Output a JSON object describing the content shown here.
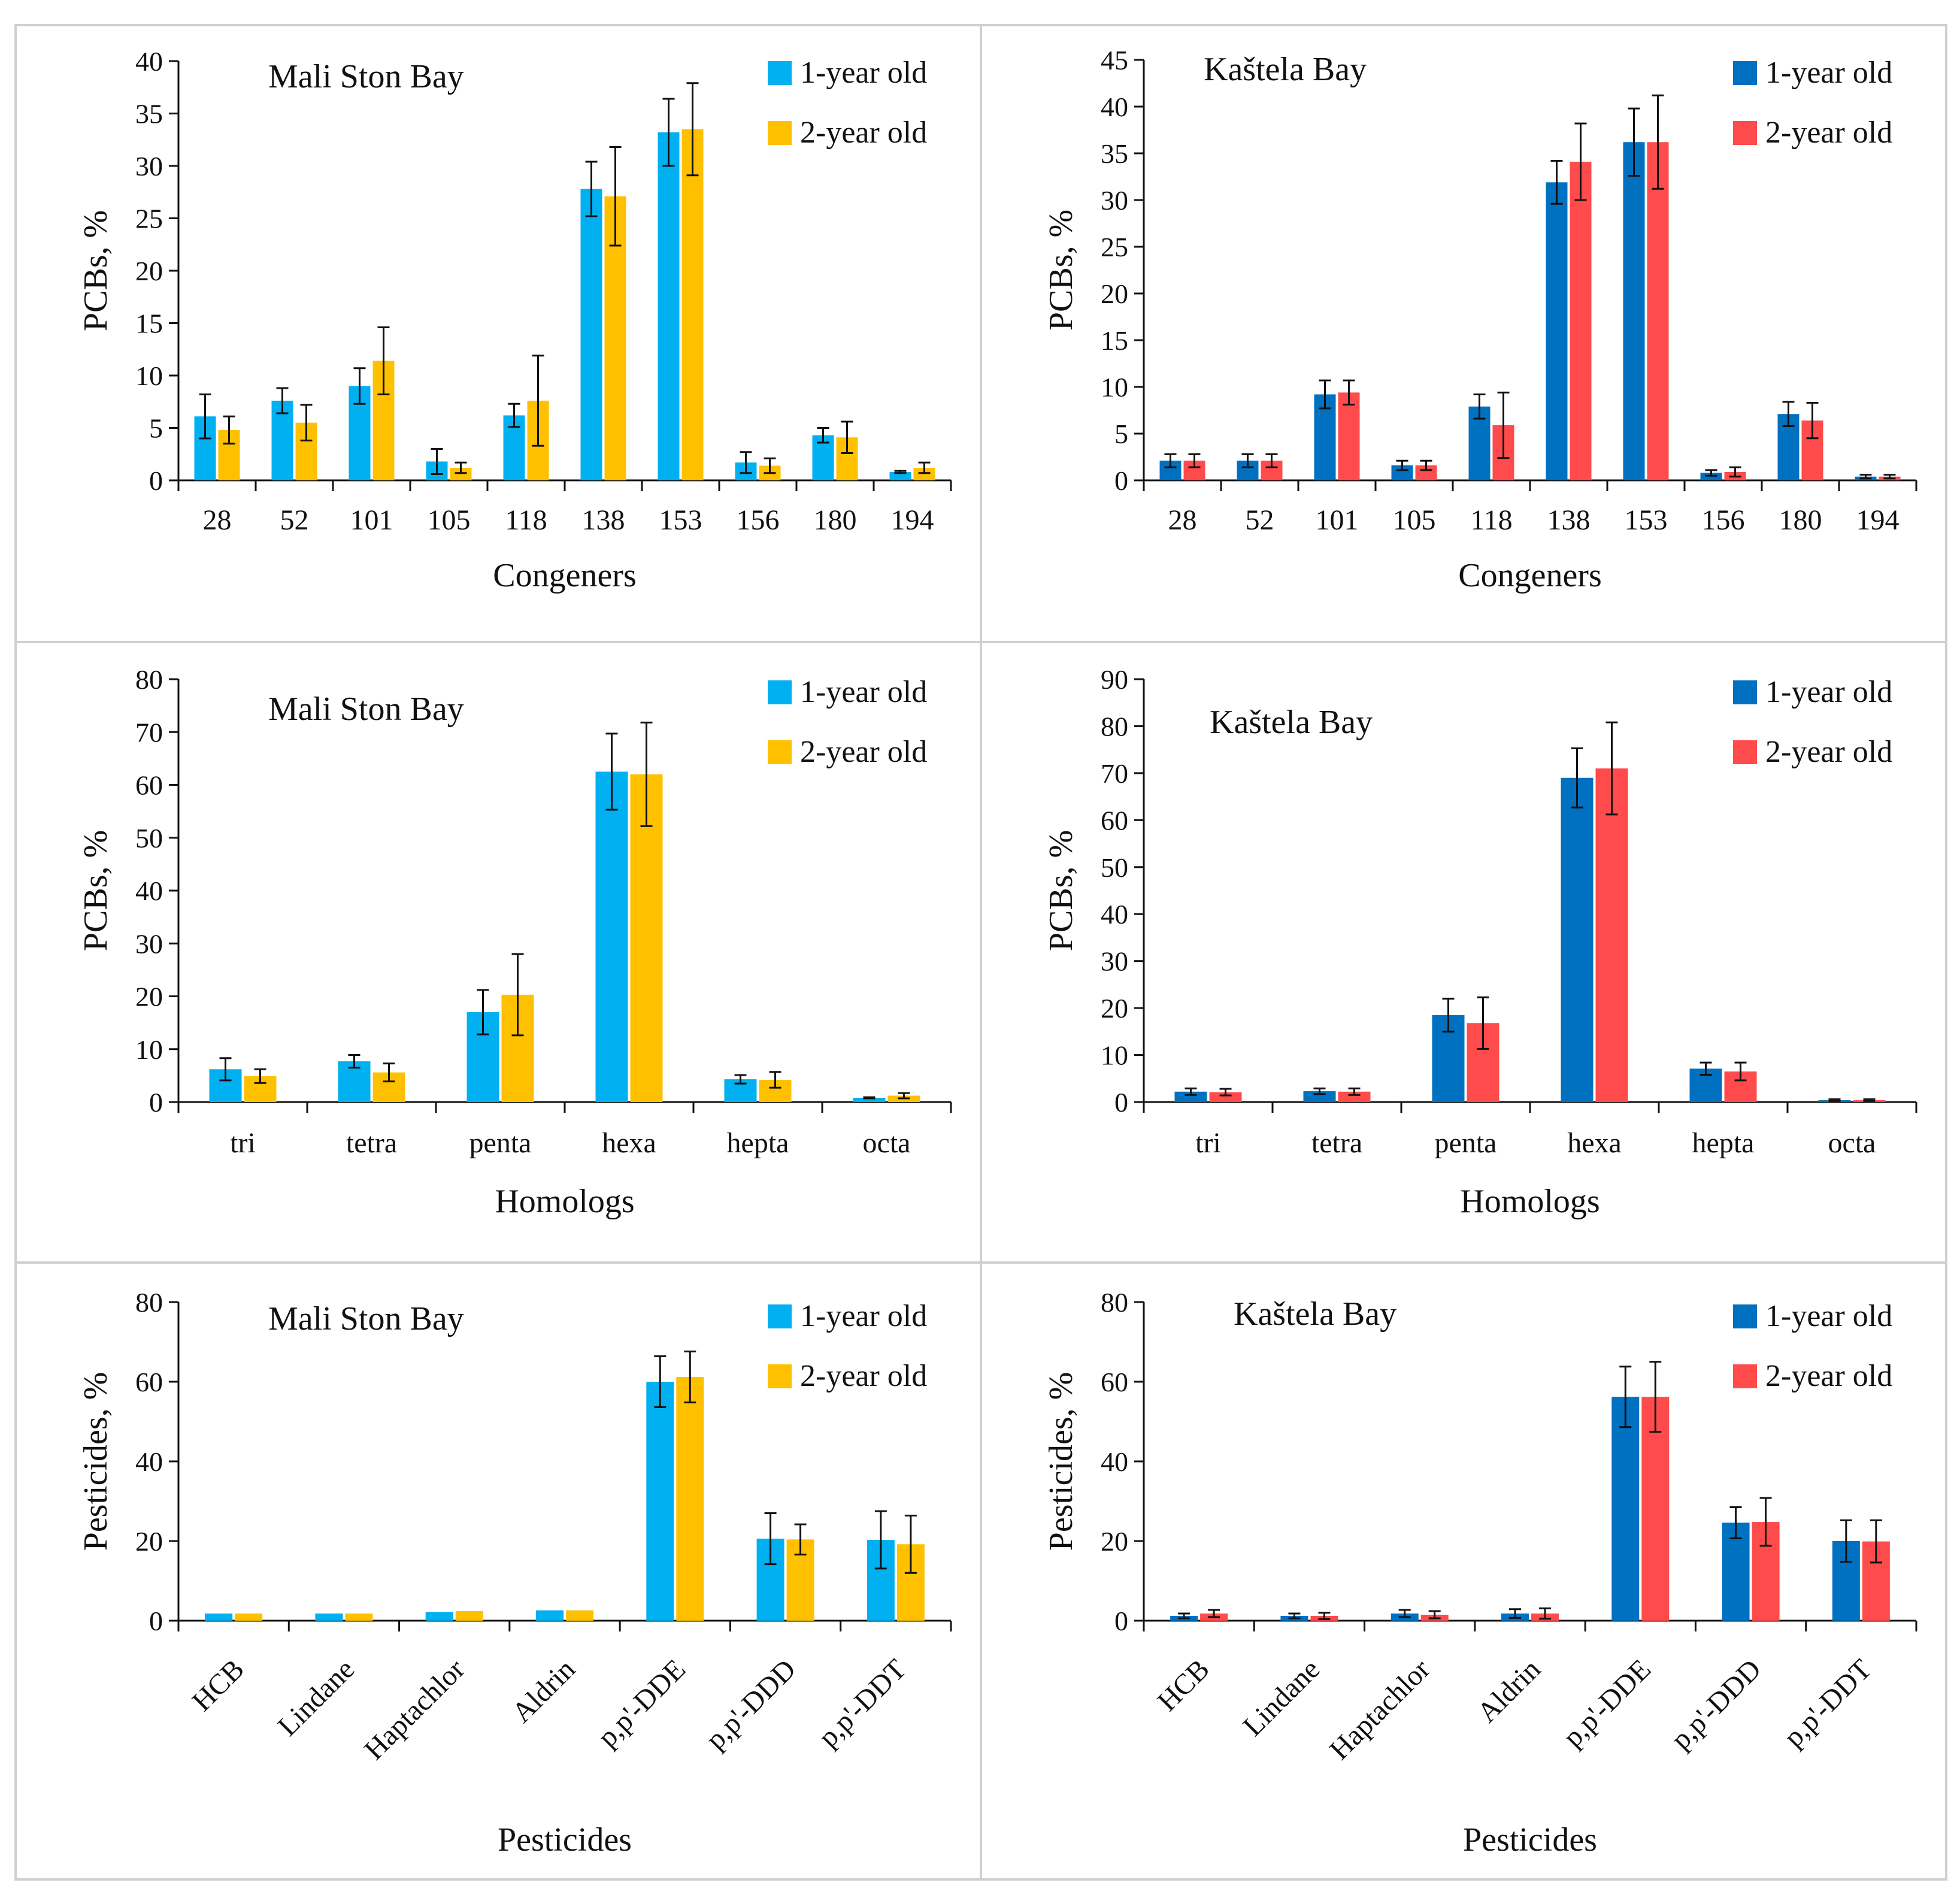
{
  "legend_labels": [
    "1-year old",
    "2-year old"
  ],
  "colors": {
    "mali_1yr": "#00b0f0",
    "mali_2yr": "#ffc000",
    "kastela_1yr": "#0070c0",
    "kastela_2yr": "#ff4b4b",
    "axis": "#111111",
    "errorbar": "#111111"
  },
  "chart_data": [
    {
      "type": "bar",
      "title": "Mali Ston Bay",
      "xlabel": "Congeners",
      "ylabel": "PCBs, %",
      "ylim": [
        0,
        40
      ],
      "yticks": [
        0,
        5,
        10,
        15,
        20,
        25,
        30,
        35,
        40
      ],
      "legend_position": "top-right",
      "categories": [
        "28",
        "52",
        "101",
        "105",
        "118",
        "138",
        "153",
        "156",
        "180",
        "194"
      ],
      "series": [
        {
          "name": "1-year old",
          "values": [
            6.1,
            7.6,
            9.0,
            1.8,
            6.2,
            27.8,
            33.2,
            1.7,
            4.3,
            0.8
          ],
          "errors": [
            2.1,
            1.2,
            1.7,
            1.2,
            1.1,
            2.6,
            3.2,
            1.0,
            0.7,
            0.1
          ]
        },
        {
          "name": "2-year old",
          "values": [
            4.8,
            5.5,
            11.4,
            1.2,
            7.6,
            27.1,
            33.5,
            1.4,
            4.1,
            1.2
          ],
          "errors": [
            1.3,
            1.7,
            3.2,
            0.5,
            4.3,
            4.7,
            4.4,
            0.7,
            1.5,
            0.5
          ]
        }
      ]
    },
    {
      "type": "bar",
      "title": "Kaštela Bay",
      "xlabel": "Congeners",
      "ylabel": "PCBs, %",
      "ylim": [
        0,
        45
      ],
      "yticks": [
        0,
        5,
        10,
        15,
        20,
        25,
        30,
        35,
        40,
        45
      ],
      "legend_position": "top-right",
      "categories": [
        "28",
        "52",
        "101",
        "105",
        "118",
        "138",
        "153",
        "156",
        "180",
        "194"
      ],
      "series": [
        {
          "name": "1-year old",
          "values": [
            2.1,
            2.1,
            9.2,
            1.6,
            7.9,
            31.9,
            36.2,
            0.8,
            7.1,
            0.4
          ],
          "errors": [
            0.7,
            0.7,
            1.5,
            0.5,
            1.3,
            2.3,
            3.6,
            0.3,
            1.3,
            0.2
          ]
        },
        {
          "name": "2-year old",
          "values": [
            2.1,
            2.1,
            9.4,
            1.6,
            5.9,
            34.1,
            36.2,
            0.9,
            6.4,
            0.4
          ],
          "errors": [
            0.7,
            0.7,
            1.3,
            0.5,
            3.5,
            4.1,
            5.0,
            0.5,
            1.9,
            0.2
          ]
        }
      ]
    },
    {
      "type": "bar",
      "title": "Mali Ston Bay",
      "xlabel": "Homologs",
      "ylabel": "PCBs, %",
      "ylim": [
        0,
        80
      ],
      "yticks": [
        0,
        10,
        20,
        30,
        40,
        50,
        60,
        70,
        80
      ],
      "legend_position": "top-right",
      "categories": [
        "tri",
        "tetra",
        "penta",
        "hexa",
        "hepta",
        "octa"
      ],
      "series": [
        {
          "name": "1-year old",
          "values": [
            6.2,
            7.7,
            17.0,
            62.5,
            4.3,
            0.8
          ],
          "errors": [
            2.1,
            1.2,
            4.2,
            7.2,
            0.8,
            0.1
          ]
        },
        {
          "name": "2-year old",
          "values": [
            4.9,
            5.6,
            20.3,
            62.0,
            4.2,
            1.2
          ],
          "errors": [
            1.3,
            1.7,
            7.7,
            9.8,
            1.5,
            0.5
          ]
        }
      ]
    },
    {
      "type": "bar",
      "title": "Kaštela Bay",
      "xlabel": "Homologs",
      "ylabel": "PCBs, %",
      "ylim": [
        0,
        90
      ],
      "yticks": [
        0,
        10,
        20,
        30,
        40,
        50,
        60,
        70,
        80,
        90
      ],
      "legend_position": "top-right",
      "categories": [
        "tri",
        "tetra",
        "penta",
        "hexa",
        "hepta",
        "octa"
      ],
      "series": [
        {
          "name": "1-year old",
          "values": [
            2.2,
            2.3,
            18.5,
            69.0,
            7.1,
            0.4
          ],
          "errors": [
            0.7,
            0.6,
            3.5,
            6.3,
            1.3,
            0.2
          ]
        },
        {
          "name": "2-year old",
          "values": [
            2.1,
            2.2,
            16.8,
            71.0,
            6.5,
            0.4
          ],
          "errors": [
            0.7,
            0.7,
            5.5,
            9.8,
            1.9,
            0.2
          ]
        }
      ]
    },
    {
      "type": "bar",
      "title": "Mali Ston Bay",
      "xlabel": "Pesticides",
      "ylabel": "Pesticides, %",
      "ylim": [
        0,
        80
      ],
      "yticks": [
        0,
        20,
        40,
        60,
        80
      ],
      "legend_position": "top-right",
      "categories": [
        "HCB",
        "Lindane",
        "Haptachlor",
        "Aldrin",
        "p,p'-DDE",
        "p,p'-DDD",
        "p,p'-DDT"
      ],
      "series": [
        {
          "name": "1-year old",
          "values": [
            1.8,
            1.8,
            2.2,
            2.6,
            60.0,
            20.6,
            20.3
          ],
          "errors": [
            0,
            0,
            0,
            0,
            6.4,
            6.4,
            7.2
          ]
        },
        {
          "name": "2-year old",
          "values": [
            1.8,
            1.8,
            2.4,
            2.6,
            61.2,
            20.4,
            19.2
          ],
          "errors": [
            0,
            0,
            0,
            0,
            6.4,
            3.8,
            7.2
          ]
        }
      ]
    },
    {
      "type": "bar",
      "title": "Kaštela Bay",
      "xlabel": "Pesticides",
      "ylabel": "Pesticides, %",
      "ylim": [
        0,
        80
      ],
      "yticks": [
        0,
        20,
        40,
        60,
        80
      ],
      "legend_position": "top-right",
      "categories": [
        "HCB",
        "Lindane",
        "Haptachlor",
        "Aldrin",
        "p,p'-DDE",
        "p,p'-DDD",
        "p,p'-DDT"
      ],
      "series": [
        {
          "name": "1-year old",
          "values": [
            1.2,
            1.2,
            1.8,
            1.8,
            56.2,
            24.6,
            20.0
          ],
          "errors": [
            0.6,
            0.6,
            0.9,
            1.1,
            7.6,
            3.9,
            5.2
          ]
        },
        {
          "name": "2-year old",
          "values": [
            1.8,
            1.2,
            1.5,
            1.8,
            56.2,
            24.8,
            19.9
          ],
          "errors": [
            0.9,
            0.8,
            0.9,
            1.3,
            8.8,
            6.0,
            5.3
          ]
        }
      ]
    }
  ]
}
